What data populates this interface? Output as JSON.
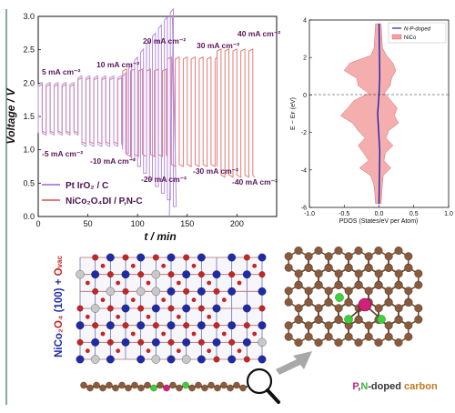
{
  "figure": {
    "left_chart": {
      "y_label": "Voltage / V",
      "x_label": "t / min",
      "y_ticks": [
        "0.0",
        "0.5",
        "1.0",
        "1.5",
        "2.0",
        "2.5",
        "3.0"
      ],
      "x_ticks": [
        "0",
        "50",
        "100",
        "150",
        "200"
      ],
      "annotations_top": [
        "5 mA cm⁻²",
        "10 mA cm⁻²",
        "20 mA cm⁻²",
        "30 mA cm⁻²",
        "40 mA cm⁻²"
      ],
      "annotations_bottom": [
        "-5 mA cm⁻²",
        "-10 mA cm⁻²",
        "-20 mA cm⁻²",
        "-30 mA cm⁻²",
        "-40 mA cm⁻²"
      ],
      "legend": [
        "Pt IrO₂ / C",
        "NiCo₂O₄DI / P,N-C"
      ]
    },
    "right_chart": {
      "y_label": "E − Eꜰ (eV)",
      "x_label": "PDOS (States/eV per Atom)",
      "y_ticks": [
        "4",
        "2",
        "0",
        "-2",
        "-4",
        "-6"
      ],
      "x_ticks": [
        "-1.0",
        "-0.5",
        "0.0",
        "0.5",
        "1.0"
      ],
      "legend": [
        "N-P-doped",
        "NiCo"
      ]
    },
    "structure_left_label": "NiCo₂O₄ (100) + Ovac",
    "structure_right_label": "P,N-doped carbon",
    "colors": {
      "ptiro2": "#b48be0",
      "nico": "#e27a7a",
      "pdos_blue": "#1c1fa8",
      "pdos_fill": "#f3a0a0",
      "ann": "#5a165a",
      "carbon": "#8a5a3b",
      "n": "#39d339",
      "p": "#d0207a",
      "cobalt": "#1f2aa8",
      "oxygen": "#c92323"
    }
  },
  "chart_data": [
    {
      "type": "line",
      "xlabel": "t / min",
      "ylabel": "Voltage / V",
      "xlim": [
        0,
        240
      ],
      "ylim": [
        0,
        3.0
      ],
      "series": [
        {
          "name": "NiCo₂O₄DI / P,N-C",
          "steps": [
            {
              "current": "5 mA cm⁻²",
              "t_start": 0,
              "t_end": 40,
              "v_charge": 1.95,
              "v_discharge": 1.28
            },
            {
              "current": "10 mA cm⁻²",
              "t_start": 40,
              "t_end": 85,
              "v_charge": 2.05,
              "v_discharge": 1.12
            },
            {
              "current": "20 mA cm⁻²",
              "t_start": 85,
              "t_end": 130,
              "v_charge": 2.18,
              "v_discharge": 0.93
            },
            {
              "current": "30 mA cm⁻²",
              "t_start": 130,
              "t_end": 180,
              "v_charge": 2.36,
              "v_discharge": 0.78
            },
            {
              "current": "40 mA cm⁻²",
              "t_start": 180,
              "t_end": 218,
              "v_charge": 2.48,
              "v_discharge": 0.62
            }
          ]
        },
        {
          "name": "Pt IrO₂ / C",
          "steps": [
            {
              "current": "5 mA cm⁻²",
              "t_start": 0,
              "t_end": 40,
              "v_charge": 1.98,
              "v_discharge": 1.25
            },
            {
              "current": "10 mA cm⁻²",
              "t_start": 40,
              "t_end": 85,
              "v_charge": 2.08,
              "v_discharge": 1.08
            },
            {
              "current": "20 mA cm⁻²",
              "t_start": 85,
              "t_end": 135,
              "v_charge": 2.7,
              "v_discharge": 0.45
            }
          ]
        }
      ]
    },
    {
      "type": "area",
      "xlabel": "PDOS (States/eV per Atom)",
      "ylabel": "E − Eꜰ (eV)",
      "xlim": [
        -1.0,
        1.0
      ],
      "ylim": [
        -6,
        4
      ],
      "series": [
        {
          "name": "NiCo",
          "y": [
            3.8,
            2.5,
            2.1,
            1.7,
            1.3,
            0.9,
            0.5,
            0.1,
            -0.3,
            -0.7,
            -1.1,
            -1.5,
            -1.9,
            -2.3,
            -2.7,
            -3.1,
            -3.5,
            -3.9,
            -4.3,
            -4.7,
            -5.2,
            -5.8
          ],
          "values": [
            -0.05,
            -0.07,
            -0.12,
            -0.42,
            -0.5,
            -0.32,
            -0.3,
            -0.15,
            -0.36,
            -0.45,
            -0.55,
            -0.38,
            -0.3,
            -0.2,
            -0.3,
            -0.22,
            -0.15,
            -0.28,
            -0.12,
            -0.08,
            -0.06,
            -0.05
          ],
          "values_pos": [
            0.03,
            0.05,
            0.11,
            0.2,
            0.24,
            0.18,
            0.16,
            0.08,
            0.17,
            0.26,
            0.22,
            0.28,
            0.14,
            0.1,
            0.2,
            0.09,
            0.07,
            0.17,
            0.06,
            0.05,
            0.04,
            0.03
          ]
        },
        {
          "name": "N-P-doped",
          "y": [
            3.8,
            1.0,
            0.0,
            -1.0,
            -3.0,
            -5.8
          ],
          "values": [
            0.0,
            0.01,
            0.0,
            -0.02,
            0.01,
            0.0
          ]
        }
      ]
    }
  ]
}
